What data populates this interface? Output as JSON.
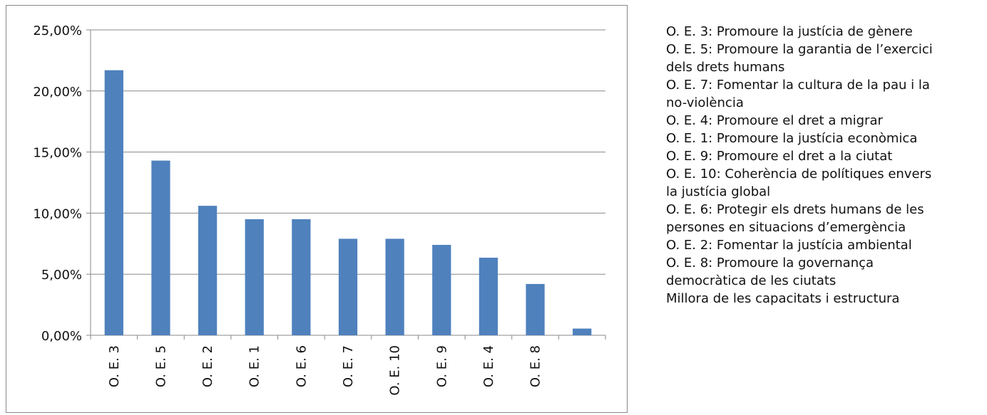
{
  "chart_data": {
    "type": "bar",
    "categories": [
      "O. E. 3",
      "O. E. 5",
      "O. E. 2",
      "O. E. 1",
      "O. E. 6",
      "O. E. 7",
      "O. E. 10",
      "O. E. 9",
      "O. E. 4",
      "O. E. 8",
      ""
    ],
    "values": [
      21.7,
      14.3,
      10.6,
      9.5,
      9.5,
      7.9,
      7.9,
      7.4,
      6.35,
      4.2,
      0.55
    ],
    "ylim": [
      0,
      25
    ],
    "yticks": [
      0,
      5,
      10,
      15,
      20,
      25
    ],
    "ytick_labels": [
      "0,00%",
      "5,00%",
      "10,00%",
      "15,00%",
      "20,00%",
      "25,00%"
    ],
    "grid": true,
    "bar_color": "#4f81bd",
    "title": "",
    "xlabel": "",
    "ylabel": ""
  },
  "legend_lines": [
    "O. E. 3: Promoure la justícia de gènere",
    "O. E. 5: Promoure la garantia de l’exercici",
    "dels drets humans",
    "O. E. 7: Fomentar la cultura de la pau i la",
    "no-violència",
    "O. E. 4: Promoure el dret a migrar",
    "O. E. 1: Promoure la justícia econòmica",
    "O. E. 9: Promoure el dret a la ciutat",
    "O. E. 10: Coherència de polítiques envers",
    "la justícia global",
    "O. E. 6: Protegir els drets humans de les",
    "persones en situacions d’emergència",
    "O. E. 2: Fomentar la justícia ambiental",
    "O. E. 8: Promoure la governança",
    "democràtica de les ciutats",
    "Millora de les capacitats i estructura"
  ]
}
